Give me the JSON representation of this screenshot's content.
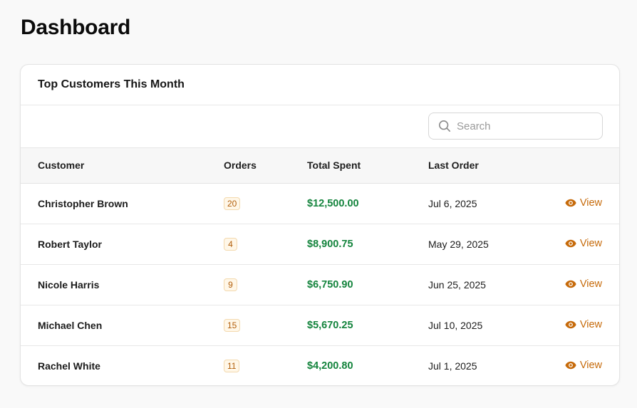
{
  "page": {
    "title": "Dashboard"
  },
  "card": {
    "title": "Top Customers This Month",
    "search": {
      "placeholder": "Search",
      "value": ""
    }
  },
  "table": {
    "columns": [
      "Customer",
      "Orders",
      "Total Spent",
      "Last Order"
    ],
    "rows": [
      {
        "customer": "Christopher Brown",
        "orders": "20",
        "total": "$12,500.00",
        "last_order": "Jul 6, 2025",
        "action": "View"
      },
      {
        "customer": "Robert Taylor",
        "orders": "4",
        "total": "$8,900.75",
        "last_order": "May 29, 2025",
        "action": "View"
      },
      {
        "customer": "Nicole Harris",
        "orders": "9",
        "total": "$6,750.90",
        "last_order": "Jun 25, 2025",
        "action": "View"
      },
      {
        "customer": "Michael Chen",
        "orders": "15",
        "total": "$5,670.25",
        "last_order": "Jul 10, 2025",
        "action": "View"
      },
      {
        "customer": "Rachel White",
        "orders": "11",
        "total": "$4,200.80",
        "last_order": "Jul 1, 2025",
        "action": "View"
      }
    ]
  },
  "colors": {
    "accent": "#c66a0a",
    "money": "#14843d",
    "badge_bg": "#fff7e8"
  },
  "icons": {
    "search": "search-icon",
    "view": "eye-icon"
  }
}
